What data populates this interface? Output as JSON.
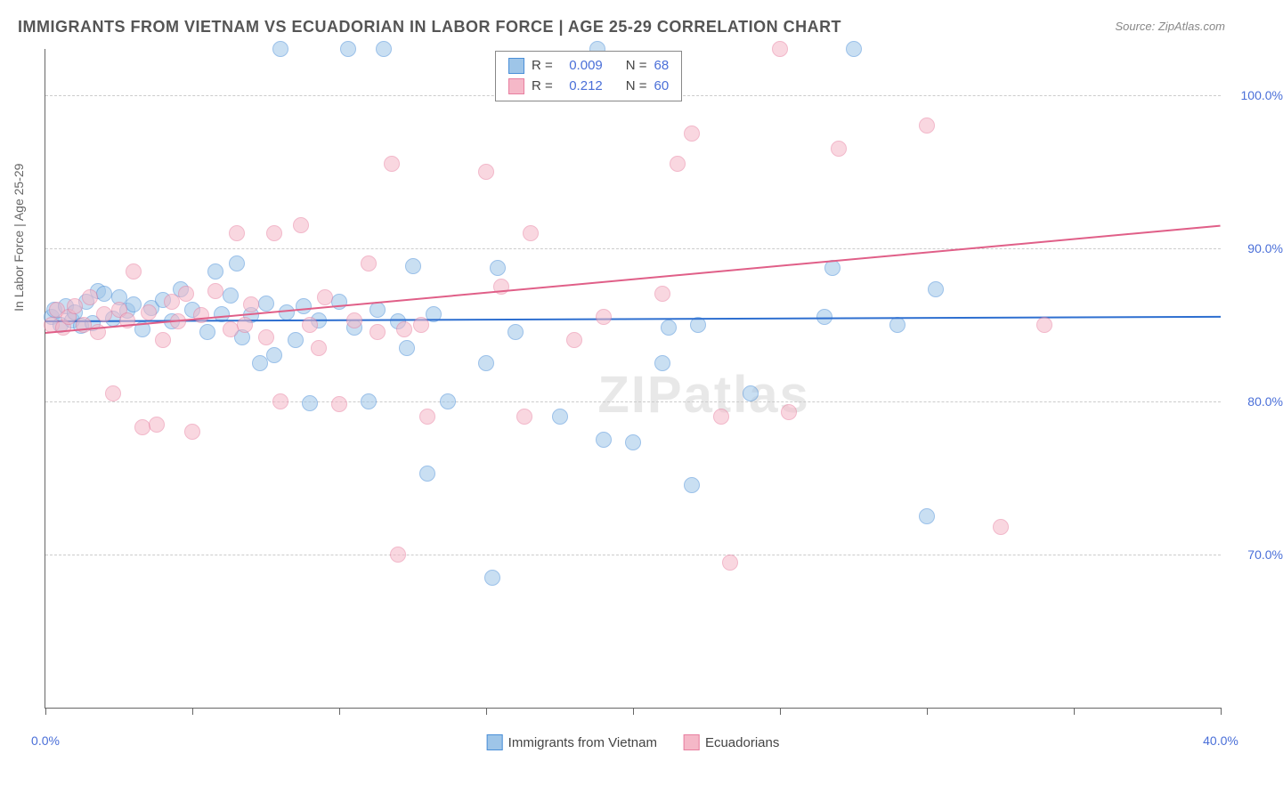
{
  "title": "IMMIGRANTS FROM VIETNAM VS ECUADORIAN IN LABOR FORCE | AGE 25-29 CORRELATION CHART",
  "source": "Source: ZipAtlas.com",
  "watermark": "ZIPatlas",
  "y_axis_label": "In Labor Force | Age 25-29",
  "chart": {
    "type": "scatter",
    "xlim": [
      0,
      40
    ],
    "ylim": [
      60,
      103
    ],
    "x_ticks": [
      0,
      5,
      10,
      15,
      20,
      25,
      30,
      35,
      40
    ],
    "x_tick_labels": {
      "0": "0.0%",
      "40": "40.0%"
    },
    "y_ticks": [
      70,
      80,
      90,
      100
    ],
    "y_tick_labels": {
      "70": "70.0%",
      "80": "80.0%",
      "90": "90.0%",
      "100": "100.0%"
    },
    "background_color": "#ffffff",
    "grid_color": "#cccccc",
    "point_radius": 8,
    "point_opacity": 0.55,
    "series": [
      {
        "name": "Immigrants from Vietnam",
        "fill_color": "#9ec5e8",
        "stroke_color": "#4a8fd8",
        "line_color": "#2e6fd0",
        "R": "0.009",
        "N": "68",
        "trendline": {
          "x1": 0,
          "y1": 85.3,
          "x2": 40,
          "y2": 85.6
        },
        "points": [
          [
            0.2,
            85.5
          ],
          [
            0.3,
            86.0
          ],
          [
            0.5,
            85.0
          ],
          [
            0.7,
            86.2
          ],
          [
            0.9,
            85.3
          ],
          [
            1.0,
            85.8
          ],
          [
            1.2,
            84.9
          ],
          [
            1.4,
            86.5
          ],
          [
            1.6,
            85.1
          ],
          [
            1.8,
            87.2
          ],
          [
            2.0,
            87.0
          ],
          [
            2.3,
            85.4
          ],
          [
            2.5,
            86.8
          ],
          [
            2.8,
            85.9
          ],
          [
            3.0,
            86.3
          ],
          [
            3.3,
            84.7
          ],
          [
            3.6,
            86.1
          ],
          [
            4.0,
            86.6
          ],
          [
            4.3,
            85.2
          ],
          [
            4.6,
            87.3
          ],
          [
            5.0,
            86.0
          ],
          [
            5.5,
            84.5
          ],
          [
            5.8,
            88.5
          ],
          [
            6.0,
            85.7
          ],
          [
            6.3,
            86.9
          ],
          [
            6.5,
            89.0
          ],
          [
            6.7,
            84.2
          ],
          [
            7.0,
            85.6
          ],
          [
            7.3,
            82.5
          ],
          [
            7.5,
            86.4
          ],
          [
            7.8,
            83.0
          ],
          [
            8.0,
            103.0
          ],
          [
            8.2,
            85.8
          ],
          [
            8.5,
            84.0
          ],
          [
            8.8,
            86.2
          ],
          [
            9.0,
            79.9
          ],
          [
            9.3,
            85.3
          ],
          [
            10.0,
            86.5
          ],
          [
            10.3,
            103.0
          ],
          [
            10.5,
            84.8
          ],
          [
            11.0,
            80.0
          ],
          [
            11.3,
            86.0
          ],
          [
            11.5,
            103.0
          ],
          [
            12.0,
            85.2
          ],
          [
            12.3,
            83.5
          ],
          [
            12.5,
            88.8
          ],
          [
            13.0,
            75.3
          ],
          [
            13.2,
            85.7
          ],
          [
            13.7,
            80.0
          ],
          [
            15.0,
            82.5
          ],
          [
            15.2,
            68.5
          ],
          [
            15.4,
            88.7
          ],
          [
            16.0,
            84.5
          ],
          [
            17.5,
            79.0
          ],
          [
            18.8,
            103.0
          ],
          [
            19.0,
            77.5
          ],
          [
            20.0,
            77.3
          ],
          [
            21.0,
            82.5
          ],
          [
            21.2,
            84.8
          ],
          [
            22.0,
            74.5
          ],
          [
            24.0,
            80.5
          ],
          [
            26.8,
            88.7
          ],
          [
            27.5,
            103.0
          ],
          [
            29.0,
            85.0
          ],
          [
            30.0,
            72.5
          ],
          [
            30.3,
            87.3
          ],
          [
            26.5,
            85.5
          ],
          [
            22.2,
            85.0
          ]
        ]
      },
      {
        "name": "Ecuadorians",
        "fill_color": "#f5b8c8",
        "stroke_color": "#e87fa0",
        "line_color": "#e05f88",
        "R": "0.212",
        "N": "60",
        "trendline": {
          "x1": 0,
          "y1": 84.5,
          "x2": 40,
          "y2": 91.5
        },
        "points": [
          [
            0.2,
            85.0
          ],
          [
            0.4,
            86.0
          ],
          [
            0.6,
            84.8
          ],
          [
            0.8,
            85.5
          ],
          [
            1.0,
            86.2
          ],
          [
            1.3,
            85.0
          ],
          [
            1.5,
            86.8
          ],
          [
            1.8,
            84.5
          ],
          [
            2.0,
            85.7
          ],
          [
            2.3,
            80.5
          ],
          [
            2.5,
            86.0
          ],
          [
            2.8,
            85.3
          ],
          [
            3.0,
            88.5
          ],
          [
            3.3,
            78.3
          ],
          [
            3.5,
            85.8
          ],
          [
            3.8,
            78.5
          ],
          [
            4.0,
            84.0
          ],
          [
            4.3,
            86.5
          ],
          [
            4.5,
            85.2
          ],
          [
            4.8,
            87.0
          ],
          [
            5.0,
            78.0
          ],
          [
            5.3,
            85.6
          ],
          [
            5.8,
            87.2
          ],
          [
            6.3,
            84.7
          ],
          [
            6.5,
            91.0
          ],
          [
            6.8,
            85.0
          ],
          [
            7.0,
            86.3
          ],
          [
            7.5,
            84.2
          ],
          [
            7.8,
            91.0
          ],
          [
            8.0,
            80.0
          ],
          [
            8.7,
            91.5
          ],
          [
            9.0,
            85.0
          ],
          [
            9.3,
            83.5
          ],
          [
            9.5,
            86.8
          ],
          [
            10.0,
            79.8
          ],
          [
            10.5,
            85.3
          ],
          [
            11.0,
            89.0
          ],
          [
            11.3,
            84.5
          ],
          [
            11.8,
            95.5
          ],
          [
            12.0,
            70.0
          ],
          [
            12.2,
            84.7
          ],
          [
            12.8,
            85.0
          ],
          [
            13.0,
            79.0
          ],
          [
            15.0,
            95.0
          ],
          [
            15.5,
            87.5
          ],
          [
            16.3,
            79.0
          ],
          [
            16.5,
            91.0
          ],
          [
            18.0,
            84.0
          ],
          [
            19.0,
            85.5
          ],
          [
            21.0,
            87.0
          ],
          [
            21.5,
            95.5
          ],
          [
            22.0,
            97.5
          ],
          [
            23.0,
            79.0
          ],
          [
            23.3,
            69.5
          ],
          [
            25.0,
            103.0
          ],
          [
            25.3,
            79.3
          ],
          [
            27.0,
            96.5
          ],
          [
            30.0,
            98.0
          ],
          [
            32.5,
            71.8
          ],
          [
            34.0,
            85.0
          ]
        ]
      }
    ]
  },
  "legend_top": {
    "rows": [
      {
        "series": 0,
        "r_label": "R =",
        "n_label": "N ="
      },
      {
        "series": 1,
        "r_label": "R =",
        "n_label": "N ="
      }
    ]
  },
  "legend_bottom": {
    "items": [
      {
        "series": 0
      },
      {
        "series": 1
      }
    ]
  }
}
